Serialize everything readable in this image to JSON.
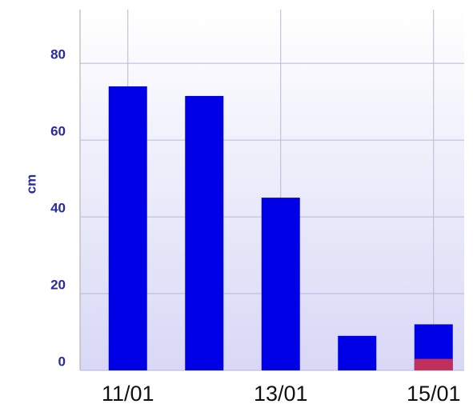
{
  "chart_data": {
    "type": "bar",
    "y_label": "cm",
    "categories": [
      "11/01",
      null,
      "13/01",
      null,
      "15/01"
    ],
    "series": [
      {
        "color": "#0000e6",
        "values": [
          74,
          71.5,
          45,
          9,
          12
        ]
      },
      {
        "color": "#c0305a",
        "values": [
          null,
          null,
          null,
          null,
          3
        ]
      }
    ],
    "ylim": [
      0,
      94
    ],
    "yticks": [
      0,
      20,
      40,
      60,
      80
    ],
    "grid": true
  }
}
